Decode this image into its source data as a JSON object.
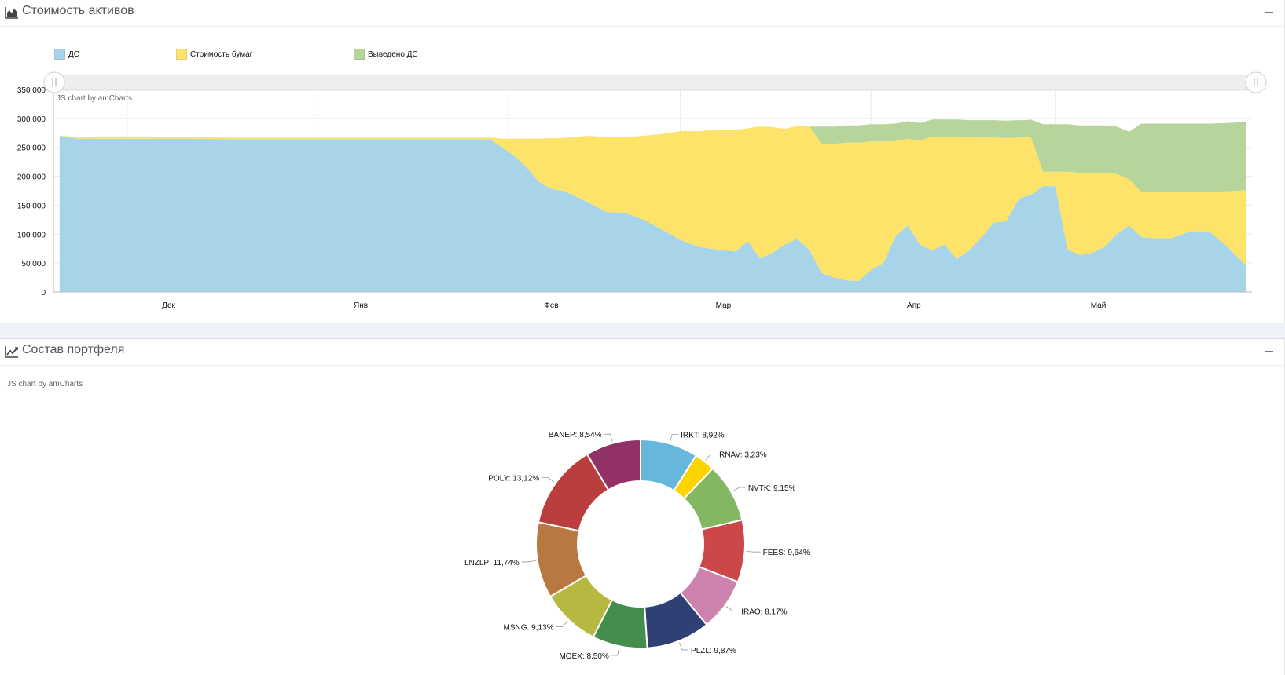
{
  "panels": {
    "assets": {
      "title": "Стоимость активов",
      "icon": "area-chart-icon"
    },
    "portfolio": {
      "title": "Состав портфеля",
      "icon": "line-chart-icon"
    }
  },
  "credit": "JS chart by amCharts",
  "colors": {
    "cash": "#a8d4ea",
    "securities": "#fde36a",
    "withdrawn": "#b7d59b"
  },
  "chart_data": [
    {
      "type": "area",
      "stacked": true,
      "title": "Стоимость активов",
      "legend_position": "top-left",
      "has_scrollbar": true,
      "grid": true,
      "ylim": [
        0,
        350000
      ],
      "y_ticks": [
        "0",
        "50 000",
        "100 000",
        "150 000",
        "200 000",
        "250 000",
        "300 000",
        "350 000"
      ],
      "x_ticks": [
        "Дек",
        "Янв",
        "Фев",
        "Мар",
        "Апр",
        "Май"
      ],
      "x": [
        "2017-11-20",
        "2017-11-23",
        "2017-11-27",
        "2017-12-04",
        "2017-12-11",
        "2017-12-18",
        "2017-12-25",
        "2018-01-01",
        "2018-01-08",
        "2018-01-15",
        "2018-01-22",
        "2018-01-29",
        "2018-01-31",
        "2018-02-02",
        "2018-02-04",
        "2018-02-06",
        "2018-02-08",
        "2018-02-10",
        "2018-02-12",
        "2018-02-14",
        "2018-02-17",
        "2018-02-20",
        "2018-02-23",
        "2018-02-26",
        "2018-03-01",
        "2018-03-04",
        "2018-03-06",
        "2018-03-08",
        "2018-03-10",
        "2018-03-12",
        "2018-03-13",
        "2018-03-14",
        "2018-03-16",
        "2018-03-18",
        "2018-03-20",
        "2018-03-22",
        "2018-03-24",
        "2018-03-26",
        "2018-03-28",
        "2018-03-30",
        "2018-04-01",
        "2018-04-03",
        "2018-04-05",
        "2018-04-07",
        "2018-04-09",
        "2018-04-11",
        "2018-04-13",
        "2018-04-15",
        "2018-04-17",
        "2018-04-19",
        "2018-04-21",
        "2018-04-23",
        "2018-04-25",
        "2018-04-26",
        "2018-04-27",
        "2018-04-29",
        "2018-05-01",
        "2018-05-03",
        "2018-05-05",
        "2018-05-07",
        "2018-05-09",
        "2018-05-11",
        "2018-05-13",
        "2018-05-15",
        "2018-05-17",
        "2018-05-20",
        "2018-05-23",
        "2018-05-26",
        "2018-05-29",
        "2018-06-01"
      ],
      "series": [
        {
          "name": "ДС",
          "values": [
            270000,
            265000,
            265000,
            265000,
            265000,
            264000,
            264000,
            264000,
            264000,
            264000,
            264000,
            264000,
            250000,
            235000,
            215000,
            190000,
            178000,
            175000,
            165000,
            155000,
            138000,
            137000,
            125000,
            108000,
            90000,
            78000,
            75000,
            72000,
            70000,
            88000,
            72000,
            58000,
            68000,
            82000,
            92000,
            73000,
            33000,
            25000,
            20000,
            19000,
            38000,
            50000,
            96000,
            115000,
            82000,
            72000,
            82000,
            57000,
            72000,
            95000,
            120000,
            122000,
            160000,
            165000,
            168000,
            183000,
            183000,
            73000,
            64000,
            68000,
            78000,
            100000,
            115000,
            95000,
            93000,
            93000,
            105000,
            105000,
            78000,
            46000
          ]
        },
        {
          "name": "Стоимость бумаг",
          "values": [
            0,
            3000,
            4000,
            4000,
            3000,
            3000,
            3000,
            3000,
            3000,
            3000,
            3000,
            3000,
            15000,
            30000,
            50000,
            75000,
            88000,
            91000,
            103000,
            115000,
            130000,
            131000,
            145000,
            165000,
            188000,
            200000,
            205000,
            208000,
            210000,
            195000,
            213000,
            228000,
            217000,
            200000,
            195000,
            213000,
            223000,
            231000,
            238000,
            239000,
            222000,
            210000,
            165000,
            150000,
            180000,
            196000,
            186000,
            211000,
            195000,
            172000,
            147000,
            144000,
            107000,
            102000,
            100000,
            25000,
            25000,
            135000,
            142000,
            138000,
            128000,
            104000,
            80000,
            78000,
            80000,
            80000,
            68000,
            68000,
            96000,
            130000
          ]
        },
        {
          "name": "Выведено ДС",
          "values": [
            0,
            0,
            0,
            0,
            0,
            0,
            0,
            0,
            0,
            0,
            0,
            0,
            0,
            0,
            0,
            0,
            0,
            0,
            0,
            0,
            0,
            0,
            0,
            0,
            0,
            0,
            0,
            0,
            0,
            0,
            0,
            0,
            0,
            0,
            0,
            0,
            30000,
            30000,
            30000,
            30000,
            30000,
            30000,
            30000,
            30000,
            30000,
            30000,
            30000,
            30000,
            30000,
            30000,
            30000,
            30000,
            30000,
            30000,
            30000,
            82000,
            82000,
            82000,
            82000,
            82000,
            82000,
            82000,
            82000,
            118000,
            118000,
            118000,
            118000,
            118000,
            118000,
            118000
          ]
        }
      ]
    },
    {
      "type": "pie",
      "subtype": "donut",
      "title": "Состав портфеля",
      "slices": [
        {
          "label": "IRKT",
          "value": 8.92,
          "text": "IRKT: 8,92%",
          "color": "#67b7dc"
        },
        {
          "label": "RNAV",
          "value": 3.23,
          "text": "RNAV: 3,23%",
          "color": "#fdd400"
        },
        {
          "label": "NVTK",
          "value": 9.15,
          "text": "NVTK: 9,15%",
          "color": "#84b761"
        },
        {
          "label": "FEES",
          "value": 9.64,
          "text": "FEES: 9,64%",
          "color": "#cc4748"
        },
        {
          "label": "IRAO",
          "value": 8.17,
          "text": "IRAO: 8,17%",
          "color": "#cd82ad"
        },
        {
          "label": "PLZL",
          "value": 9.87,
          "text": "PLZL: 9,87%",
          "color": "#2f4074"
        },
        {
          "label": "MOEX",
          "value": 8.5,
          "text": "MOEX: 8,50%",
          "color": "#448e4d"
        },
        {
          "label": "MSNG",
          "value": 9.13,
          "text": "MSNG: 9,13%",
          "color": "#b7b83f"
        },
        {
          "label": "LNZLP",
          "value": 11.74,
          "text": "LNZLP: 11,74%",
          "color": "#b9783f"
        },
        {
          "label": "POLY",
          "value": 13.12,
          "text": "POLY: 13,12%",
          "color": "#b93e3d"
        },
        {
          "label": "BANEP",
          "value": 8.54,
          "text": "BANEP: 8,54%",
          "color": "#913167"
        }
      ]
    }
  ]
}
